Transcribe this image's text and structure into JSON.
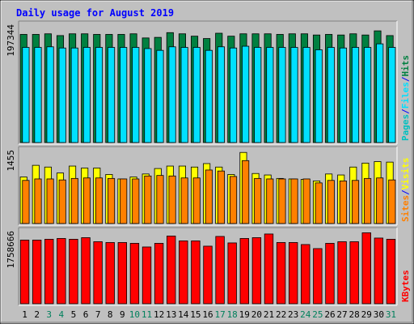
{
  "title": "Daily usage for August 2019",
  "colors": {
    "background": "#c0c0c0",
    "title": "#0000ff",
    "hits": "#008040",
    "files": "#00e0ff",
    "pages": "#00c0c0",
    "visits": "#ffff00",
    "sites": "#ff8000",
    "kbytes": "#ff0000",
    "weekend_label": "#00805c",
    "weekday_label": "#000000",
    "slash": "#0000ff"
  },
  "chart_data": [
    {
      "type": "bar",
      "panel": "hits-files-pages",
      "y_tick_label": "197344",
      "ylim": [
        0,
        197344
      ],
      "legend_placement": "right",
      "legend": [
        "Pages",
        "Files",
        "Hits"
      ],
      "categories": [
        "1",
        "2",
        "3",
        "4",
        "5",
        "6",
        "7",
        "8",
        "9",
        "10",
        "11",
        "12",
        "13",
        "14",
        "15",
        "16",
        "17",
        "18",
        "19",
        "20",
        "21",
        "22",
        "23",
        "24",
        "25",
        "26",
        "27",
        "28",
        "29",
        "30",
        "31"
      ],
      "weekend": [
        3,
        4,
        10,
        11,
        17,
        18,
        24,
        25,
        31
      ],
      "series": [
        {
          "name": "Hits",
          "values": [
            183000,
            183000,
            184000,
            181000,
            184000,
            184000,
            183000,
            183000,
            183000,
            184000,
            177000,
            178000,
            186000,
            184000,
            180000,
            176000,
            185000,
            180000,
            184000,
            184000,
            184000,
            183000,
            184000,
            184000,
            182000,
            183000,
            182000,
            184000,
            182000,
            189000,
            181000
          ]
        },
        {
          "name": "Files",
          "values": [
            161000,
            161000,
            162000,
            160000,
            160000,
            161000,
            161000,
            161000,
            161000,
            161000,
            159000,
            156000,
            162000,
            161000,
            161000,
            156000,
            162000,
            160000,
            163000,
            161000,
            161000,
            161000,
            161000,
            161000,
            157000,
            161000,
            160000,
            161000,
            161000,
            167000,
            161000
          ]
        },
        {
          "name": "Pages",
          "values": [
            null,
            null,
            null,
            null,
            null,
            null,
            null,
            null,
            null,
            null,
            null,
            null,
            null,
            null,
            null,
            null,
            null,
            null,
            null,
            null,
            null,
            null,
            null,
            null,
            null,
            null,
            null,
            null,
            null,
            null,
            null
          ]
        }
      ]
    },
    {
      "type": "bar",
      "panel": "visits-sites",
      "y_tick_label": "1455",
      "ylim": [
        0,
        1455
      ],
      "legend_placement": "right",
      "legend": [
        "Sites",
        "Visits"
      ],
      "categories": [
        "1",
        "2",
        "3",
        "4",
        "5",
        "6",
        "7",
        "8",
        "9",
        "10",
        "11",
        "12",
        "13",
        "14",
        "15",
        "16",
        "17",
        "18",
        "19",
        "20",
        "21",
        "22",
        "23",
        "24",
        "25",
        "26",
        "27",
        "28",
        "29",
        "30",
        "31"
      ],
      "series": [
        {
          "name": "Visits",
          "values": [
            940,
            1175,
            1140,
            1020,
            1160,
            1120,
            1120,
            990,
            900,
            940,
            1000,
            1110,
            1160,
            1160,
            1140,
            1210,
            1140,
            990,
            1435,
            1010,
            980,
            910,
            900,
            890,
            860,
            1000,
            980,
            1140,
            1220,
            1250,
            1240
          ]
        },
        {
          "name": "Sites",
          "values": [
            870,
            900,
            900,
            880,
            910,
            920,
            920,
            910,
            900,
            900,
            960,
            970,
            960,
            920,
            920,
            1080,
            1060,
            950,
            1270,
            910,
            900,
            900,
            900,
            900,
            820,
            870,
            860,
            870,
            910,
            920,
            880
          ]
        }
      ]
    },
    {
      "type": "bar",
      "panel": "kbytes",
      "y_tick_label": "1758666",
      "ylim": [
        0,
        1758666
      ],
      "legend_placement": "right",
      "legend": [
        "KBytes"
      ],
      "categories": [
        "1",
        "2",
        "3",
        "4",
        "5",
        "6",
        "7",
        "8",
        "9",
        "10",
        "11",
        "12",
        "13",
        "14",
        "15",
        "16",
        "17",
        "18",
        "19",
        "20",
        "21",
        "22",
        "23",
        "24",
        "25",
        "26",
        "27",
        "28",
        "29",
        "30",
        "31"
      ],
      "series": [
        {
          "name": "KBytes",
          "values": [
            1570000,
            1570000,
            1590000,
            1610000,
            1590000,
            1630000,
            1530000,
            1510000,
            1510000,
            1490000,
            1400000,
            1490000,
            1670000,
            1550000,
            1550000,
            1420000,
            1660000,
            1500000,
            1610000,
            1630000,
            1720000,
            1510000,
            1510000,
            1460000,
            1360000,
            1490000,
            1530000,
            1530000,
            1750000,
            1620000,
            1590000
          ]
        }
      ]
    }
  ]
}
